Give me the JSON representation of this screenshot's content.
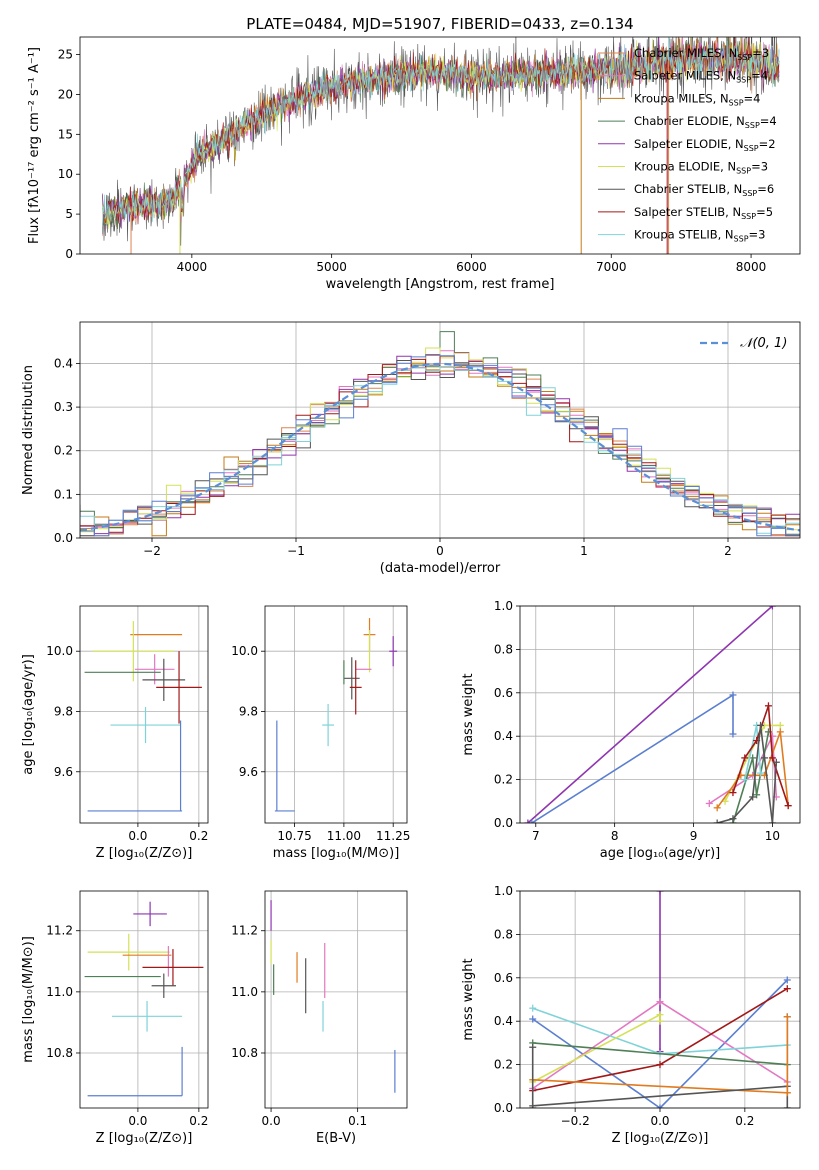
{
  "colors": {
    "Chabrier MILES": "#dd8452",
    "Salpeter MILES": "#e377c2",
    "Kroupa MILES": "#c47a17",
    "Chabrier ELODIE": "#4f7f57",
    "Salpeter ELODIE": "#9333a9",
    "Kroupa ELODIE": "#d4e157",
    "Chabrier STELIB": "#555555",
    "Salpeter STELIB": "#a21818",
    "Kroupa STELIB": "#7fd3d8",
    "blue": "#5b7fd0",
    "purple": "#8e35b0",
    "orange": "#e07c20"
  },
  "chart_data": [
    {
      "id": "spectrum",
      "type": "line",
      "title": "PLATE=0484, MJD=51907, FIBERID=0433, z=0.134",
      "xlabel": "wavelength [Angstrom, rest frame]",
      "ylabel": "Flux [fλ10⁻¹⁷ erg cm⁻² s⁻¹ A⁻¹]",
      "xlim": [
        3200,
        8350
      ],
      "ylim": [
        0,
        27.2
      ],
      "xticks": [
        4000,
        5000,
        6000,
        7000,
        8000
      ],
      "yticks": [
        0,
        5,
        10,
        15,
        20,
        25
      ],
      "legend": {
        "placement": "top-right",
        "entries": [
          {
            "label": "Chabrier MILES, N",
            "sub": "SSP",
            "eq": "=3",
            "color": "#dd8452"
          },
          {
            "label": "Salpeter MILES, N",
            "sub": "SSP",
            "eq": "=4",
            "color": "#e377c2"
          },
          {
            "label": "Kroupa MILES, N",
            "sub": "SSP",
            "eq": "=4",
            "color": "#c47a17"
          },
          {
            "label": "Chabrier ELODIE, N",
            "sub": "SSP",
            "eq": "=4",
            "color": "#4f7f57"
          },
          {
            "label": "Salpeter ELODIE, N",
            "sub": "SSP",
            "eq": "=2",
            "color": "#9333a9"
          },
          {
            "label": "Kroupa ELODIE, N",
            "sub": "SSP",
            "eq": "=3",
            "color": "#d4e157"
          },
          {
            "label": "Chabrier STELIB, N",
            "sub": "SSP",
            "eq": "=6",
            "color": "#555555"
          },
          {
            "label": "Salpeter STELIB, N",
            "sub": "SSP",
            "eq": "=5",
            "color": "#a21818"
          },
          {
            "label": "Kroupa STELIB, N",
            "sub": "SSP",
            "eq": "=3",
            "color": "#7fd3d8"
          }
        ]
      },
      "continuum": [
        [
          3360,
          5
        ],
        [
          3500,
          5.8
        ],
        [
          3650,
          6.2
        ],
        [
          3850,
          6.5
        ],
        [
          3950,
          9.5
        ],
        [
          4050,
          12.5
        ],
        [
          4250,
          14.5
        ],
        [
          4450,
          17
        ],
        [
          4700,
          19
        ],
        [
          5000,
          21
        ],
        [
          5300,
          22
        ],
        [
          5700,
          23
        ],
        [
          6000,
          22.2
        ],
        [
          6500,
          22.6
        ],
        [
          7000,
          23.2
        ],
        [
          7500,
          24.5
        ],
        [
          8000,
          24.5
        ],
        [
          8200,
          23.5
        ]
      ]
    },
    {
      "id": "residuals",
      "type": "step",
      "xlabel": "(data-model)/error",
      "ylabel": "Normed distribution",
      "xlim": [
        -2.5,
        2.5
      ],
      "ylim": [
        0,
        0.495
      ],
      "xticks": [
        -2,
        -1,
        0,
        1,
        2
      ],
      "yticks": [
        0.0,
        0.1,
        0.2,
        0.3,
        0.4
      ],
      "bin_width": 0.1,
      "legend": {
        "placement": "top-right",
        "entries": [
          {
            "label": "𝒩(0, 1)",
            "color": "#5b8fd6",
            "style": "dashed"
          }
        ]
      },
      "series_colors": [
        "#dd8452",
        "#e377c2",
        "#c47a17",
        "#4f7f57",
        "#9333a9",
        "#d4e157",
        "#555555",
        "#a21818",
        "#7fd3d8",
        "#5b7fd0"
      ]
    },
    {
      "id": "age-vs-Z",
      "type": "errorbar",
      "xlabel": "Z [log₁₀(Z/Z⊙)]",
      "ylabel": "age  [log₁₀(age/yr)]",
      "xlim": [
        -0.19,
        0.23
      ],
      "ylim": [
        9.43,
        10.15
      ],
      "xticks": [
        0.0,
        0.2
      ],
      "yticks": [
        9.6,
        9.8,
        10.0
      ],
      "points": [
        {
          "x": 0.06,
          "y": 10.055,
          "xerr": 0.085,
          "yerr": 0.0,
          "color": "#e07c20"
        },
        {
          "x": -0.015,
          "y": 10.0,
          "xerr": 0.135,
          "yerr": 0.1,
          "color": "#d4e157"
        },
        {
          "x": 0.055,
          "y": 9.94,
          "xerr": 0.065,
          "yerr": 0.05,
          "color": "#e377c2"
        },
        {
          "x": -0.05,
          "y": 9.93,
          "xerr": 0.125,
          "yerr": 0.0,
          "color": "#4f7f57"
        },
        {
          "x": 0.085,
          "y": 9.905,
          "xerr": 0.07,
          "yerr": 0.07,
          "color": "#555555"
        },
        {
          "x": 0.135,
          "y": 9.88,
          "xerr": 0.075,
          "yerr": 0.12,
          "color": "#a21818"
        },
        {
          "x": 0.025,
          "y": 9.755,
          "xerr": 0.115,
          "yerr": 0.06,
          "color": "#7fd3d8"
        },
        {
          "x": -0.01,
          "y": 9.47,
          "xerr": 0.155,
          "yerr": 0.0,
          "color": "#5b7fd0"
        },
        {
          "x": 0.14,
          "y": 9.62,
          "xerr": 0.0,
          "yerr": 0.15,
          "color": "#5b7fd0"
        }
      ]
    },
    {
      "id": "age-vs-mass",
      "type": "errorbar",
      "xlabel": "mass [log₁₀(M/M⊙)]",
      "ylabel": "",
      "xlim": [
        10.6,
        11.32
      ],
      "ylim": [
        9.43,
        10.15
      ],
      "xticks": [
        10.75,
        11.0,
        11.25
      ],
      "yticks": [
        9.6,
        9.8,
        10.0
      ],
      "points": [
        {
          "x": 11.13,
          "y": 10.055,
          "xerr": 0.03,
          "yerr": 0.055,
          "color": "#e07c20"
        },
        {
          "x": 11.13,
          "y": 10.0,
          "xerr": 0.0,
          "yerr": 0.07,
          "color": "#d4e157"
        },
        {
          "x": 11.25,
          "y": 10.0,
          "xerr": 0.02,
          "yerr": 0.05,
          "color": "#8e35b0"
        },
        {
          "x": 11.1,
          "y": 9.94,
          "xerr": 0.04,
          "yerr": 0.0,
          "color": "#e377c2"
        },
        {
          "x": 11.04,
          "y": 9.91,
          "xerr": 0.04,
          "yerr": 0.07,
          "color": "#555555"
        },
        {
          "x": 11.06,
          "y": 9.88,
          "xerr": 0.03,
          "yerr": 0.09,
          "color": "#a21818"
        },
        {
          "x": 11.0,
          "y": 9.93,
          "xerr": 0.0,
          "yerr": 0.04,
          "color": "#4f7f57"
        },
        {
          "x": 10.92,
          "y": 9.755,
          "xerr": 0.03,
          "yerr": 0.07,
          "color": "#7fd3d8"
        },
        {
          "x": 10.7,
          "y": 9.47,
          "xerr": 0.05,
          "yerr": 0.0,
          "color": "#5b7fd0"
        },
        {
          "x": 10.66,
          "y": 9.62,
          "xerr": 0.0,
          "yerr": 0.15,
          "color": "#5b7fd0"
        }
      ]
    },
    {
      "id": "mass-weight-vs-age",
      "type": "line",
      "xlabel": "age  [log₁₀(age/yr)]",
      "ylabel": "mass weight",
      "xlim": [
        6.8,
        10.35
      ],
      "ylim": [
        0,
        1.0
      ],
      "xticks": [
        7,
        8,
        9,
        10
      ],
      "yticks": [
        0.0,
        0.2,
        0.4,
        0.6,
        0.8,
        1.0
      ],
      "series": [
        {
          "color": "#8e35b0",
          "x": [
            6.9,
            10.0
          ],
          "y": [
            0.0,
            1.0
          ]
        },
        {
          "color": "#5b7fd0",
          "x": [
            6.95,
            9.5,
            9.5
          ],
          "y": [
            0.0,
            0.59,
            0.41
          ]
        },
        {
          "color": "#e377c2",
          "x": [
            9.2,
            9.75,
            10.0,
            10.05
          ],
          "y": [
            0.09,
            0.22,
            0.4,
            0.12
          ]
        },
        {
          "color": "#d4e157",
          "x": [
            9.4,
            9.9,
            10.1
          ],
          "y": [
            0.1,
            0.45,
            0.45
          ]
        },
        {
          "color": "#e07c20",
          "x": [
            9.3,
            9.6,
            9.9,
            10.1,
            10.2
          ],
          "y": [
            0.07,
            0.22,
            0.22,
            0.42,
            0.08
          ]
        },
        {
          "color": "#4f7f57",
          "x": [
            9.5,
            9.75,
            9.8,
            9.95
          ],
          "y": [
            0.0,
            0.3,
            0.13,
            0.42
          ]
        },
        {
          "color": "#7fd3d8",
          "x": [
            9.65,
            9.8,
            9.85
          ],
          "y": [
            0.2,
            0.45,
            0.23
          ]
        },
        {
          "color": "#a21818",
          "x": [
            9.5,
            9.65,
            9.8,
            9.95,
            10.0,
            10.2
          ],
          "y": [
            0.14,
            0.3,
            0.38,
            0.54,
            0.3,
            0.08
          ]
        },
        {
          "color": "#555555",
          "x": [
            9.3,
            9.5,
            9.75,
            9.85,
            9.9,
            10.0,
            10.05
          ],
          "y": [
            0.0,
            0.02,
            0.12,
            0.45,
            0.3,
            0.0,
            0.28
          ]
        }
      ]
    },
    {
      "id": "mass-vs-Z",
      "type": "errorbar",
      "xlabel": "Z [log₁₀(Z/Z⊙)]",
      "ylabel": "mass [log₁₀(M/M⊙)]",
      "xlim": [
        -0.19,
        0.23
      ],
      "ylim": [
        10.62,
        11.33
      ],
      "xticks": [
        0.0,
        0.2
      ],
      "yticks": [
        10.8,
        11.0,
        11.2
      ],
      "points": [
        {
          "x": 0.04,
          "y": 11.255,
          "xerr": 0.055,
          "yerr": 0.04,
          "color": "#8e35b0"
        },
        {
          "x": -0.03,
          "y": 11.13,
          "xerr": 0.135,
          "yerr": 0.06,
          "color": "#d4e157"
        },
        {
          "x": 0.03,
          "y": 11.12,
          "xerr": 0.08,
          "yerr": 0.0,
          "color": "#e07c20"
        },
        {
          "x": 0.1,
          "y": 11.1,
          "xerr": 0.0,
          "yerr": 0.05,
          "color": "#e377c2"
        },
        {
          "x": 0.115,
          "y": 11.08,
          "xerr": 0.1,
          "yerr": 0.06,
          "color": "#a21818"
        },
        {
          "x": -0.05,
          "y": 11.05,
          "xerr": 0.125,
          "yerr": 0.0,
          "color": "#4f7f57"
        },
        {
          "x": 0.085,
          "y": 11.02,
          "xerr": 0.04,
          "yerr": 0.04,
          "color": "#555555"
        },
        {
          "x": 0.03,
          "y": 10.92,
          "xerr": 0.115,
          "yerr": 0.05,
          "color": "#7fd3d8"
        },
        {
          "x": -0.01,
          "y": 10.66,
          "xerr": 0.155,
          "yerr": 0.0,
          "color": "#5b7fd0"
        },
        {
          "x": 0.145,
          "y": 10.74,
          "xerr": 0.0,
          "yerr": 0.08,
          "color": "#5b7fd0"
        }
      ]
    },
    {
      "id": "mass-vs-EBV",
      "type": "errorbar",
      "xlabel": "E(B-V)",
      "ylabel": "",
      "xlim": [
        -0.007,
        0.157
      ],
      "ylim": [
        10.62,
        11.33
      ],
      "xticks": [
        0.0,
        0.1
      ],
      "yticks": [
        10.8,
        11.0,
        11.2
      ],
      "points": [
        {
          "x": 0.0,
          "y": 11.25,
          "xerr": 0.0,
          "yerr": 0.05,
          "color": "#8e35b0"
        },
        {
          "x": 0.0,
          "y": 11.13,
          "xerr": 0.0,
          "yerr": 0.04,
          "color": "#d4e157"
        },
        {
          "x": 0.003,
          "y": 11.04,
          "xerr": 0.0,
          "yerr": 0.05,
          "color": "#4f7f57"
        },
        {
          "x": 0.03,
          "y": 11.08,
          "xerr": 0.0,
          "yerr": 0.05,
          "color": "#e07c20"
        },
        {
          "x": 0.04,
          "y": 11.02,
          "xerr": 0.0,
          "yerr": 0.09,
          "color": "#555555"
        },
        {
          "x": 0.062,
          "y": 11.07,
          "xerr": 0.0,
          "yerr": 0.09,
          "color": "#e377c2"
        },
        {
          "x": 0.06,
          "y": 10.92,
          "xerr": 0.0,
          "yerr": 0.05,
          "color": "#7fd3d8"
        },
        {
          "x": 0.143,
          "y": 10.74,
          "xerr": 0.0,
          "yerr": 0.07,
          "color": "#5b7fd0"
        }
      ]
    },
    {
      "id": "mass-weight-vs-Z",
      "type": "line",
      "xlabel": "Z [log₁₀(Z/Z⊙)]",
      "ylabel": "mass weight",
      "xlim": [
        -0.33,
        0.33
      ],
      "ylim": [
        0,
        1.0
      ],
      "xticks": [
        -0.2,
        0.0,
        0.2
      ],
      "yticks": [
        0.0,
        0.2,
        0.4,
        0.6,
        0.8,
        1.0
      ],
      "series": [
        {
          "color": "#8e35b0",
          "x": [
            0.0,
            0.0
          ],
          "y": [
            0.26,
            1.0
          ]
        },
        {
          "color": "#5b7fd0",
          "x": [
            -0.3,
            0.0,
            0.3
          ],
          "y": [
            0.41,
            0.0,
            0.59
          ]
        },
        {
          "color": "#e377c2",
          "x": [
            -0.3,
            0.0,
            0.3
          ],
          "y": [
            0.09,
            0.49,
            0.12
          ]
        },
        {
          "color": "#7fd3d8",
          "x": [
            -0.3,
            0.0,
            0.3
          ],
          "y": [
            0.46,
            0.25,
            0.29
          ]
        },
        {
          "color": "#d4e157",
          "x": [
            -0.3,
            0.0,
            0.0
          ],
          "y": [
            0.12,
            0.43,
            0.4
          ]
        },
        {
          "color": "#a21818",
          "x": [
            -0.3,
            0.0,
            0.3
          ],
          "y": [
            0.08,
            0.2,
            0.55
          ]
        },
        {
          "color": "#4f7f57",
          "x": [
            -0.3,
            0.3
          ],
          "y": [
            0.3,
            0.2
          ]
        },
        {
          "color": "#e07c20",
          "x": [
            -0.3,
            0.3
          ],
          "y": [
            0.13,
            0.07
          ]
        },
        {
          "color": "#555555",
          "x": [
            -0.3,
            0.3
          ],
          "y": [
            0.01,
            0.1
          ]
        },
        {
          "color": "#555555",
          "x": [
            -0.3,
            -0.3
          ],
          "y": [
            0.0,
            0.28
          ]
        },
        {
          "color": "#555555",
          "x": [
            0.3,
            0.3
          ],
          "y": [
            0.0,
            0.42
          ]
        },
        {
          "color": "#e07c20",
          "x": [
            0.3,
            0.3
          ],
          "y": [
            0.07,
            0.42
          ]
        }
      ]
    }
  ]
}
